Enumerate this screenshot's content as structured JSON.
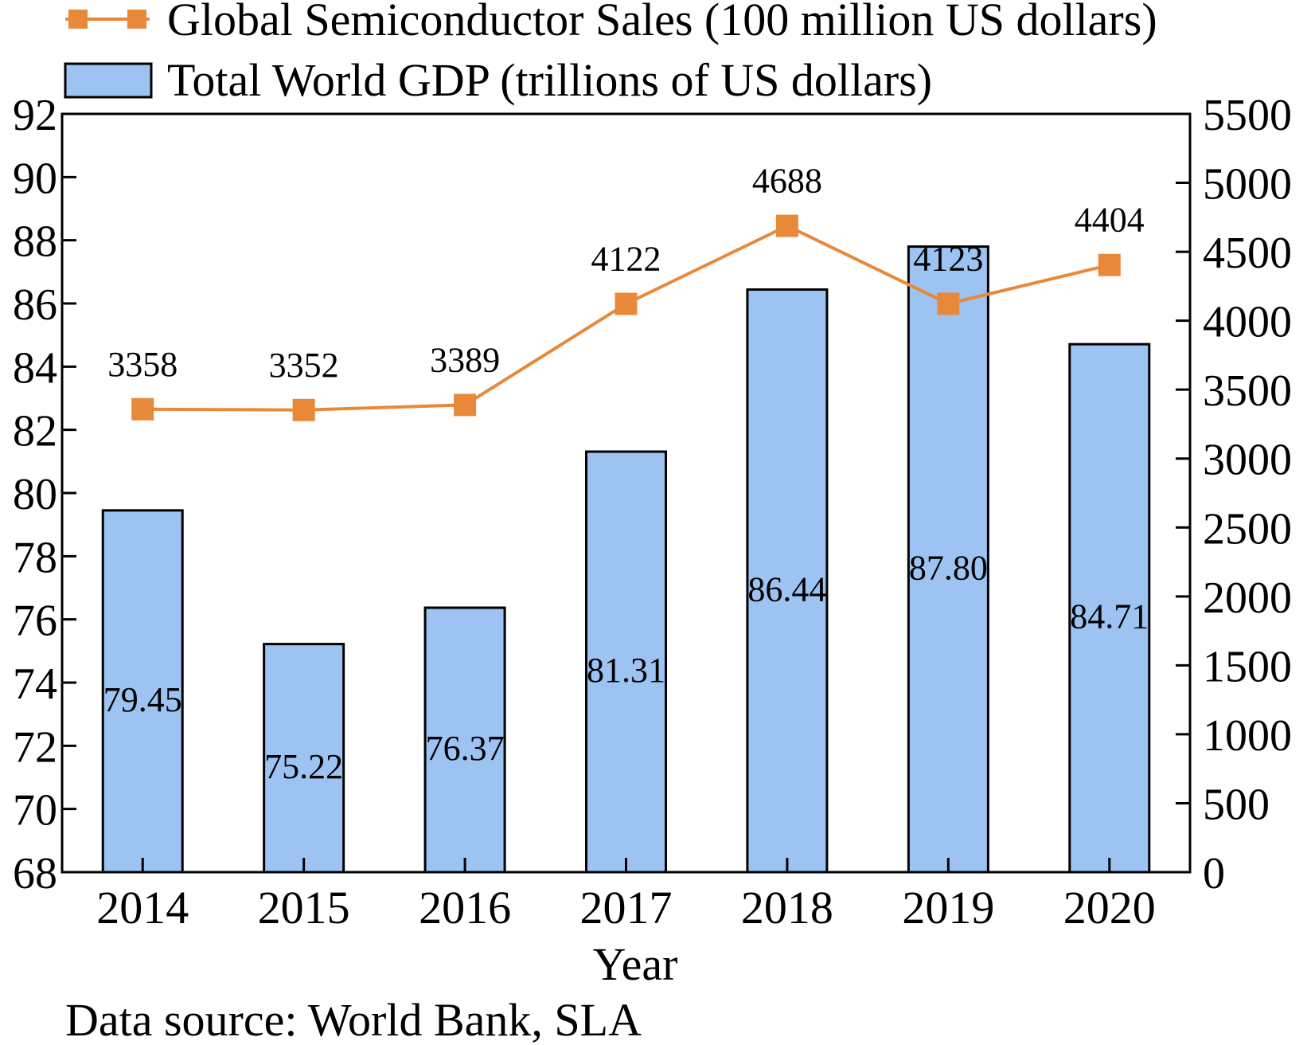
{
  "chart_data": {
    "type": "bar",
    "xlabel": "Year",
    "categories": [
      "2014",
      "2015",
      "2016",
      "2017",
      "2018",
      "2019",
      "2020"
    ],
    "series": [
      {
        "name": "Total World GDP (trillions of US dollars)",
        "type": "bar",
        "axis": "left",
        "values": [
          79.45,
          75.22,
          76.37,
          81.31,
          86.44,
          87.8,
          84.71
        ],
        "labels": [
          "79.45",
          "75.22",
          "76.37",
          "81.31",
          "86.44",
          "87.80",
          "84.71"
        ],
        "color": "#9dc3f2"
      },
      {
        "name": "Global Semiconductor Sales (100 million US dollars)",
        "type": "line",
        "axis": "right",
        "values": [
          3358,
          3352,
          3389,
          4122,
          4688,
          4123,
          4404
        ],
        "labels": [
          "3358",
          "3352",
          "3389",
          "4122",
          "4688",
          "4123",
          "4404"
        ],
        "color": "#e8893a"
      }
    ],
    "y_left": {
      "lim": [
        68,
        92
      ],
      "ticks": [
        "68",
        "70",
        "72",
        "74",
        "76",
        "78",
        "80",
        "82",
        "84",
        "86",
        "88",
        "90",
        "92"
      ]
    },
    "y_right": {
      "lim": [
        0,
        5500
      ],
      "ticks": [
        "0",
        "500",
        "1000",
        "1500",
        "2000",
        "2500",
        "3000",
        "3500",
        "4000",
        "4500",
        "5000",
        "5500"
      ]
    },
    "grid": false,
    "legend_position": "top-left",
    "note": "Data source: World Bank, SLA"
  }
}
